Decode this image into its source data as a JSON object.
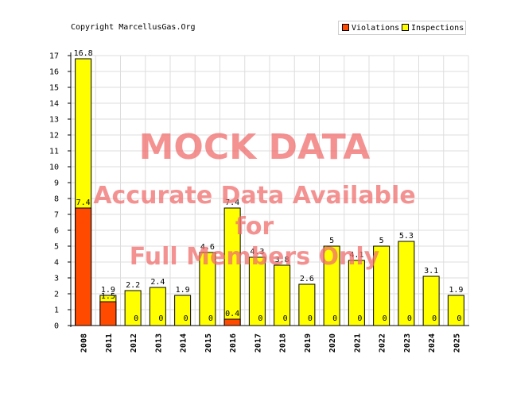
{
  "copyright": "Copyright MarcellusGas.Org",
  "watermark": {
    "line1": "MOCK DATA",
    "line2": "Accurate Data Available",
    "line3": "for",
    "line4": "Full Members Only"
  },
  "colors": {
    "violations": "#ff4a00",
    "inspections": "#ffff00",
    "grid": "#dddddd",
    "watermark": "#f06e6e"
  },
  "chart_data": {
    "type": "bar",
    "categories": [
      "2008",
      "2011",
      "2012",
      "2013",
      "2014",
      "2015",
      "2016",
      "2017",
      "2018",
      "2019",
      "2020",
      "2021",
      "2022",
      "2023",
      "2024",
      "2025"
    ],
    "series": [
      {
        "name": "Violations",
        "values": [
          7.4,
          1.5,
          0,
          0,
          0,
          0,
          0.4,
          0,
          0,
          0,
          0,
          0,
          0,
          0,
          0,
          0
        ],
        "color": "#ff4a00"
      },
      {
        "name": "Inspections",
        "values": [
          16.8,
          1.9,
          2.2,
          2.4,
          1.9,
          4.6,
          7.4,
          4.3,
          3.8,
          2.6,
          5,
          4.1,
          5,
          5.3,
          3.1,
          1.9
        ],
        "color": "#ffff00"
      }
    ],
    "yticks": [
      0,
      1,
      2,
      3,
      4,
      5,
      6,
      7,
      8,
      9,
      10,
      11,
      12,
      13,
      14,
      15,
      16,
      17
    ],
    "ylim": [
      0,
      17
    ],
    "grid": true,
    "legend": "top-right",
    "title": "",
    "xlabel": "",
    "ylabel": ""
  }
}
